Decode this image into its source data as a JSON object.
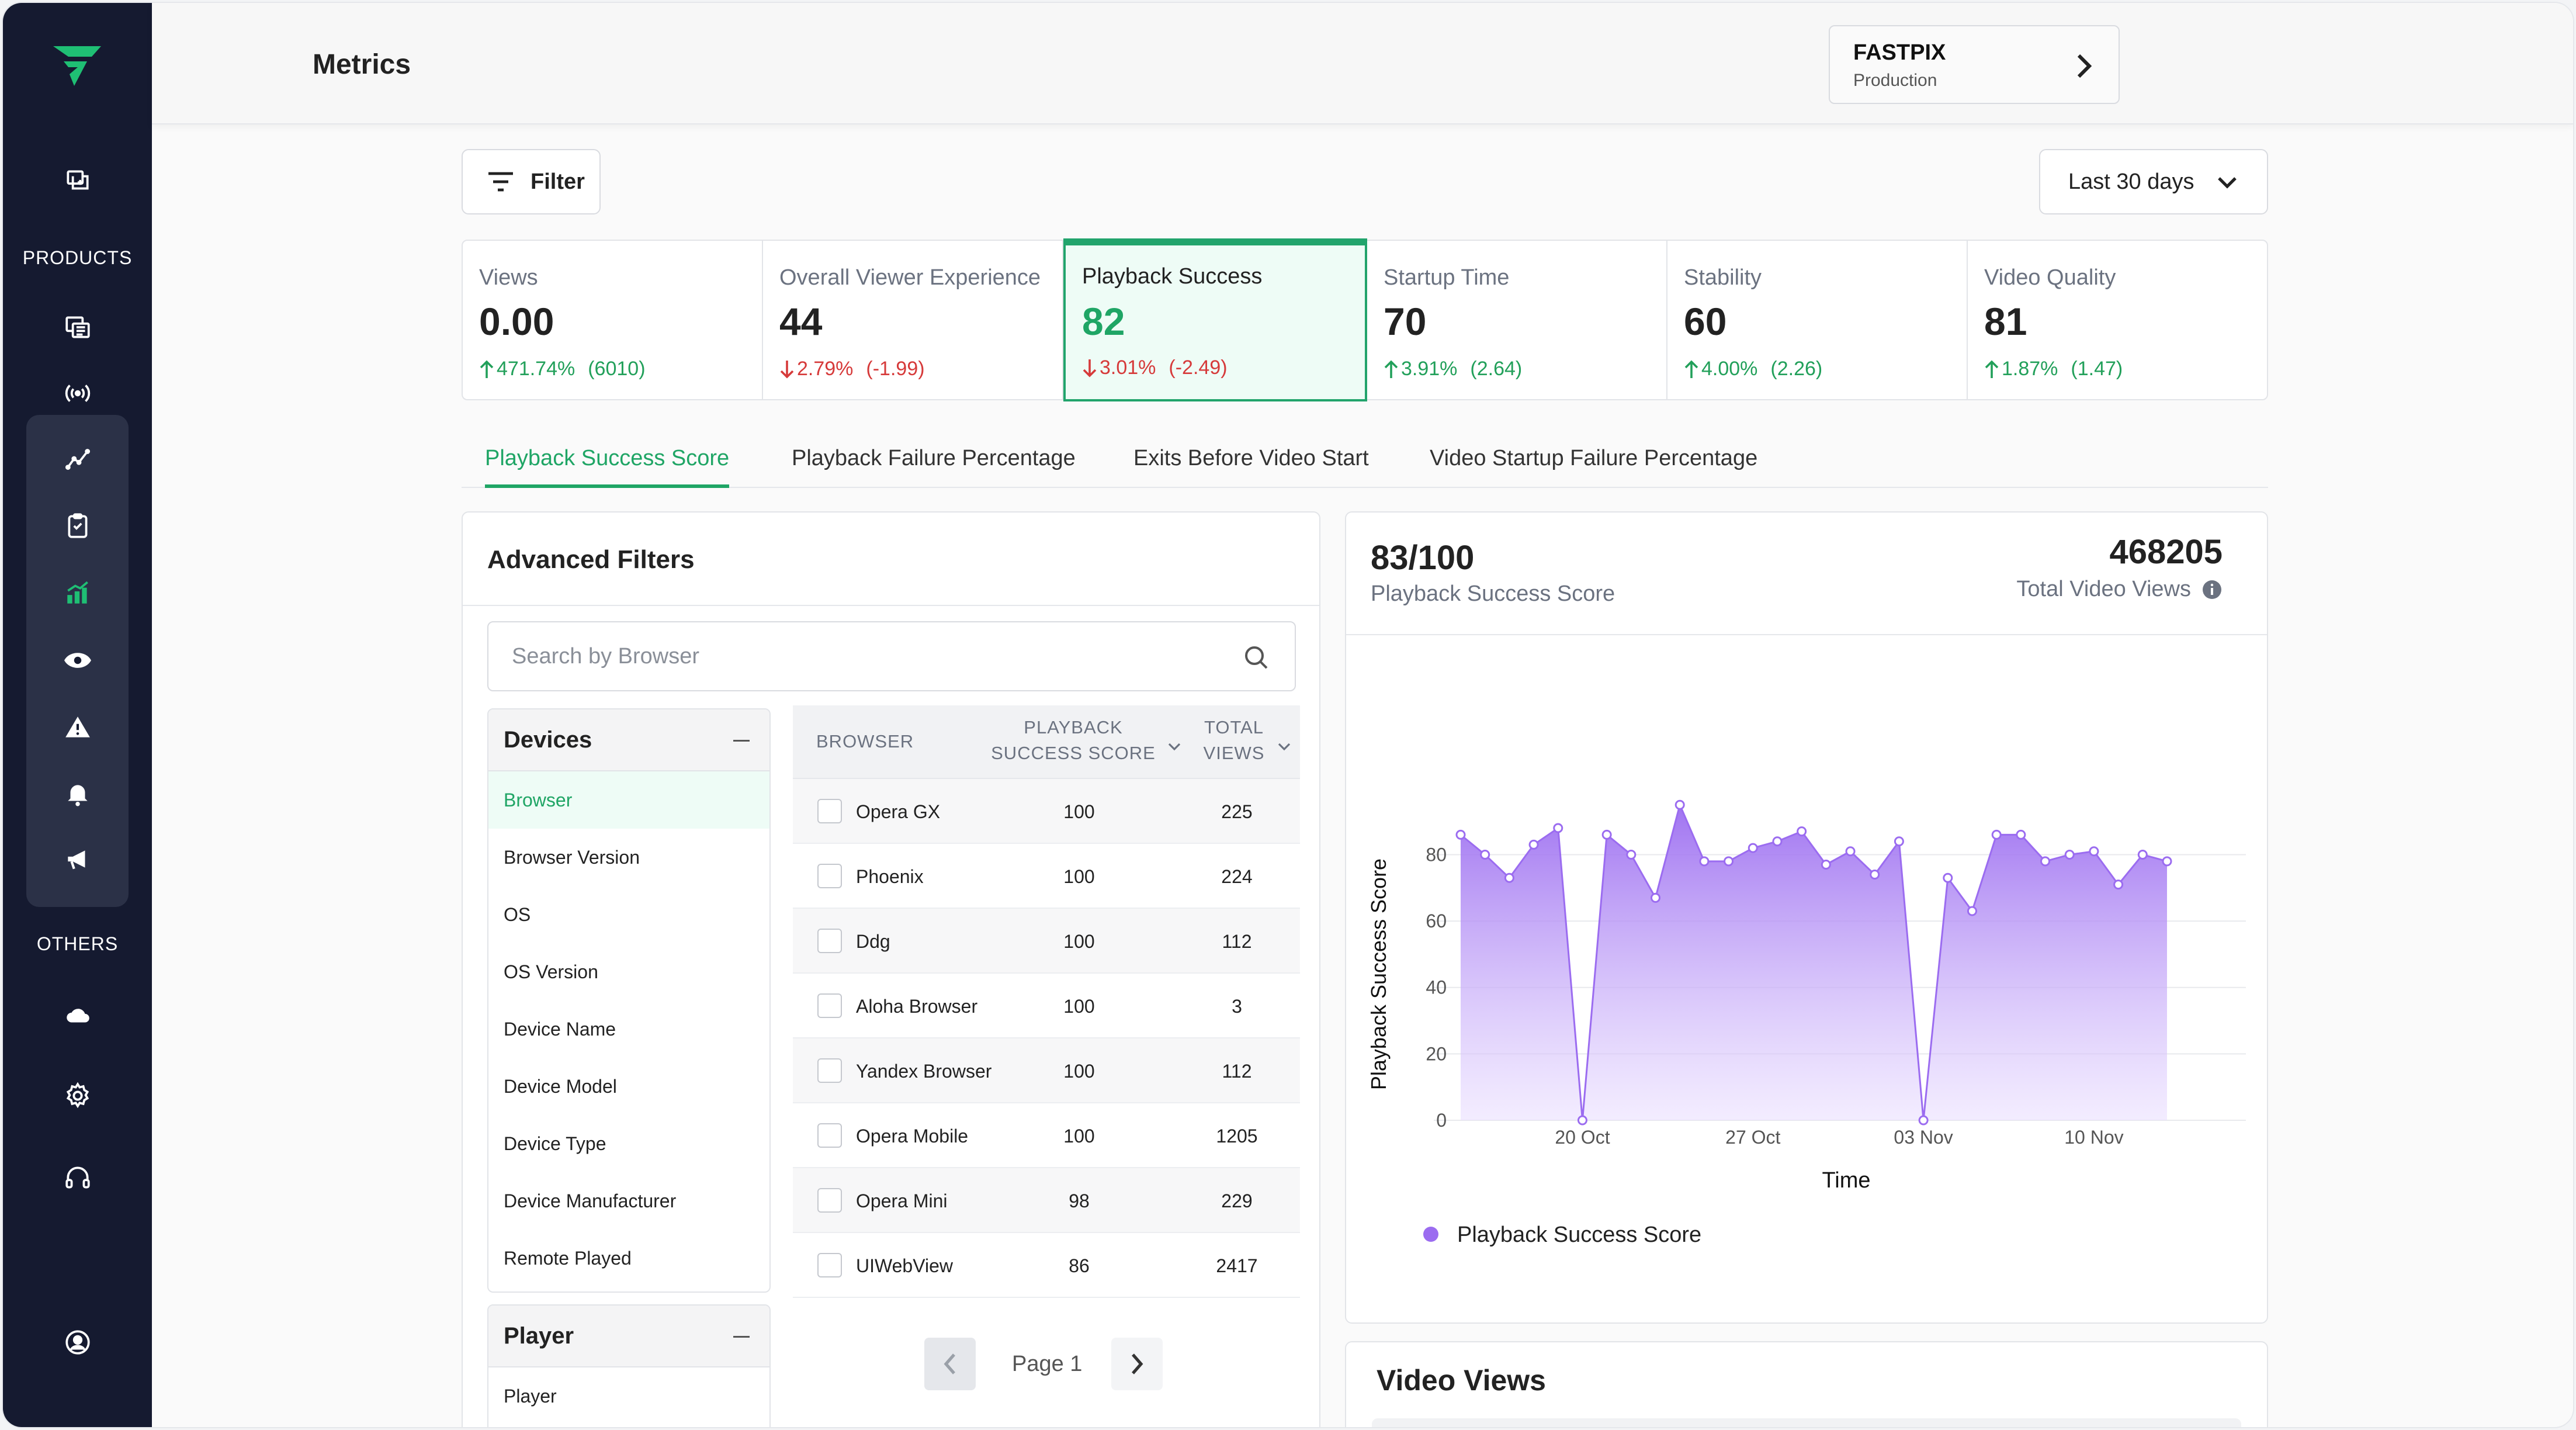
{
  "sidebar": {
    "products_label": "PRODUCTS",
    "others_label": "OTHERS",
    "icons": [
      "logo-icon",
      "add-folder-icon",
      "media-library-icon",
      "live-stream-icon",
      "metrics-trend-icon",
      "clipboard-icon",
      "bar-chart-icon",
      "eye-icon",
      "warning-icon",
      "bell-icon",
      "megaphone-icon",
      "cloud-icon",
      "gear-icon",
      "headset-icon",
      "user-circle-icon"
    ]
  },
  "header": {
    "title": "Metrics",
    "org_name": "FASTPIX",
    "org_env": "Production"
  },
  "toolbar": {
    "filter_label": "Filter",
    "range_label": "Last 30 days"
  },
  "kpis": [
    {
      "label": "Views",
      "value": "0.00",
      "delta": "471.74%",
      "change": "(6010)",
      "direction": "up"
    },
    {
      "label": "Overall Viewer Experience",
      "value": "44",
      "delta": "2.79%",
      "change": "(-1.99)",
      "direction": "down"
    },
    {
      "label": "Playback Success",
      "value": "82",
      "delta": "3.01%",
      "change": "(-2.49)",
      "direction": "down"
    },
    {
      "label": "Startup Time",
      "value": "70",
      "delta": "3.91%",
      "change": "(2.64)",
      "direction": "up"
    },
    {
      "label": "Stability",
      "value": "60",
      "delta": "4.00%",
      "change": "(2.26)",
      "direction": "up"
    },
    {
      "label": "Video Quality",
      "value": "81",
      "delta": "1.87%",
      "change": "(1.47)",
      "direction": "up"
    }
  ],
  "tabs": [
    "Playback Success Score",
    "Playback Failure Percentage",
    "Exits Before Video Start",
    "Video Startup Failure Percentage"
  ],
  "advanced": {
    "title": "Advanced Filters",
    "search_placeholder": "Search by Browser",
    "devices_label": "Devices",
    "devices_items": [
      "Browser",
      "Browser Version",
      "OS",
      "OS Version",
      "Device Name",
      "Device Model",
      "Device Type",
      "Device Manufacturer",
      "Remote Played"
    ],
    "player_label": "Player",
    "player_items": [
      "Player"
    ]
  },
  "browser_table": {
    "headers": {
      "browser": "BROWSER",
      "score_1": "PLAYBACK",
      "score_2": "SUCCESS SCORE",
      "views_1": "TOTAL",
      "views_2": "VIEWS"
    },
    "rows": [
      {
        "name": "Opera GX",
        "score": "100",
        "views": "225"
      },
      {
        "name": "Phoenix",
        "score": "100",
        "views": "224"
      },
      {
        "name": "Ddg",
        "score": "100",
        "views": "112"
      },
      {
        "name": "Aloha Browser",
        "score": "100",
        "views": "3"
      },
      {
        "name": "Yandex Browser",
        "score": "100",
        "views": "112"
      },
      {
        "name": "Opera Mobile",
        "score": "100",
        "views": "1205"
      },
      {
        "name": "Opera Mini",
        "score": "98",
        "views": "229"
      },
      {
        "name": "UIWebView",
        "score": "86",
        "views": "2417"
      }
    ],
    "page_label": "Page 1"
  },
  "summary": {
    "score": "83/100",
    "score_label": "Playback Success Score",
    "total_views": "468205",
    "total_views_label": "Total Video Views"
  },
  "video_views": {
    "title": "Video Views"
  },
  "colors": {
    "accent_green": "#1fa565",
    "series_purple": "#9b6cf0",
    "sidebar_bg": "#151a30",
    "down_red": "#d63a3a"
  },
  "chart_data": {
    "type": "area",
    "xlabel": "Time",
    "ylabel": "Playback Success Score",
    "ylim": [
      0,
      88
    ],
    "yticks": [
      0,
      20,
      40,
      60,
      80
    ],
    "xtick_labels": [
      {
        "label": "20 Oct",
        "index": 5
      },
      {
        "label": "27 Oct",
        "index": 12
      },
      {
        "label": "03 Nov",
        "index": 19
      },
      {
        "label": "10 Nov",
        "index": 26
      }
    ],
    "legend": "bottom-left",
    "series": [
      {
        "name": "Playback Success Score",
        "values": [
          86,
          80,
          73,
          83,
          88,
          0,
          86,
          80,
          67,
          95,
          78,
          78,
          82,
          84,
          87,
          77,
          81,
          74,
          84,
          0,
          73,
          63,
          86,
          86,
          78,
          80,
          81,
          71,
          80,
          78
        ]
      }
    ]
  }
}
